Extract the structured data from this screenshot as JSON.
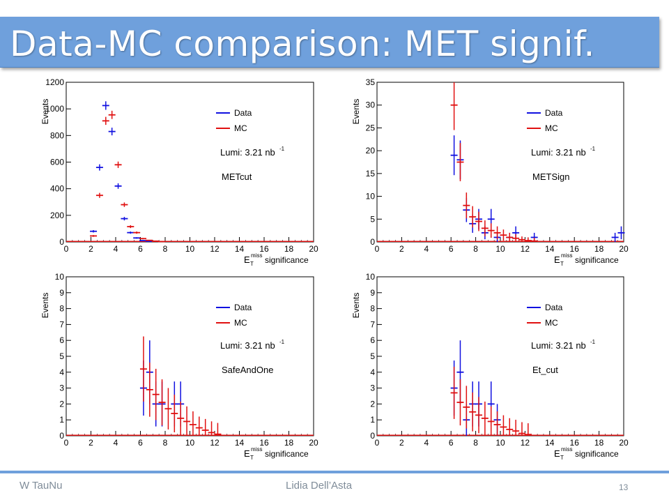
{
  "slide": {
    "title": "Data-MC comparison: MET signif.",
    "footer_left": "W TauNu",
    "footer_center": "Lidia Dell’Asta",
    "page_number": "13"
  },
  "colors": {
    "title_bar": "#6fa0dc",
    "data": "#1010e0",
    "mc": "#e01010",
    "footer_line": "#6fa0dc"
  },
  "chart_data": [
    {
      "type": "scatter",
      "name": "METcut",
      "ylabel": "Events",
      "xlabel": "significance",
      "ylim": [
        0,
        1200
      ],
      "yticks": [
        0,
        200,
        400,
        600,
        800,
        1000,
        1200
      ],
      "xlim": [
        0,
        20
      ],
      "xticks": [
        0,
        2,
        4,
        6,
        8,
        10,
        12,
        14,
        16,
        18,
        20
      ],
      "lumi": "Lumi: 3.21 nb",
      "lumi_exp": "-1",
      "selection": "METcut",
      "legend": [
        "Data",
        "MC"
      ],
      "series": [
        {
          "name": "Data",
          "points": [
            [
              2.2,
              80
            ],
            [
              2.7,
              560
            ],
            [
              3.2,
              1025
            ],
            [
              3.7,
              830
            ],
            [
              4.2,
              420
            ],
            [
              4.7,
              175
            ],
            [
              5.2,
              70
            ],
            [
              5.7,
              30
            ],
            [
              6.2,
              10
            ],
            [
              6.7,
              5
            ]
          ]
        },
        {
          "name": "MC",
          "points": [
            [
              2.2,
              45
            ],
            [
              2.7,
              350
            ],
            [
              3.2,
              910
            ],
            [
              3.7,
              955
            ],
            [
              4.2,
              580
            ],
            [
              4.7,
              280
            ],
            [
              5.2,
              115
            ],
            [
              5.7,
              70
            ],
            [
              6.2,
              25
            ],
            [
              6.7,
              12
            ],
            [
              7.2,
              6
            ],
            [
              7.7,
              3
            ]
          ]
        }
      ]
    },
    {
      "type": "scatter",
      "name": "METSign",
      "ylabel": "Events",
      "xlabel": "significance",
      "ylim": [
        0,
        35
      ],
      "yticks": [
        0,
        5,
        10,
        15,
        20,
        25,
        30,
        35
      ],
      "xlim": [
        0,
        20
      ],
      "xticks": [
        0,
        2,
        4,
        6,
        8,
        10,
        12,
        14,
        16,
        18,
        20
      ],
      "lumi": "Lumi: 3.21 nb",
      "lumi_exp": "-1",
      "selection": "METSign",
      "legend": [
        "Data",
        "MC"
      ],
      "series": [
        {
          "name": "Data",
          "points": [
            [
              6.25,
              19
            ],
            [
              6.75,
              18
            ],
            [
              7.25,
              7
            ],
            [
              7.75,
              4
            ],
            [
              8.25,
              5
            ],
            [
              8.75,
              2
            ],
            [
              9.25,
              5
            ],
            [
              9.75,
              1
            ],
            [
              10.75,
              1
            ],
            [
              11.25,
              2
            ],
            [
              12.75,
              1
            ],
            [
              19.3,
              1
            ],
            [
              19.8,
              2
            ]
          ]
        },
        {
          "name": "MC",
          "points": [
            [
              6.25,
              30
            ],
            [
              6.75,
              17.5
            ],
            [
              7.25,
              8
            ],
            [
              7.75,
              5.5
            ],
            [
              8.25,
              4.5
            ],
            [
              8.75,
              3
            ],
            [
              9.25,
              2.5
            ],
            [
              9.75,
              2
            ],
            [
              10.25,
              1.5
            ],
            [
              10.75,
              1
            ],
            [
              11.25,
              0.8
            ],
            [
              11.75,
              0.5
            ],
            [
              12.25,
              0.3
            ],
            [
              12.75,
              0.2
            ]
          ]
        }
      ]
    },
    {
      "type": "scatter",
      "name": "SafeAndOne",
      "ylabel": "Events",
      "xlabel": "significance",
      "ylim": [
        0,
        10
      ],
      "yticks": [
        0,
        1,
        2,
        3,
        4,
        5,
        6,
        7,
        8,
        9,
        10
      ],
      "xlim": [
        0,
        20
      ],
      "xticks": [
        0,
        2,
        4,
        6,
        8,
        10,
        12,
        14,
        16,
        18,
        20
      ],
      "lumi": "Lumi: 3.21 nb",
      "lumi_exp": "-1",
      "selection": "SafeAndOne",
      "legend": [
        "Data",
        "MC"
      ],
      "series": [
        {
          "name": "Data",
          "points": [
            [
              6.25,
              3
            ],
            [
              6.75,
              4
            ],
            [
              7.25,
              2
            ],
            [
              7.75,
              2
            ],
            [
              8.75,
              2
            ],
            [
              9.25,
              2
            ]
          ]
        },
        {
          "name": "MC",
          "points": [
            [
              6.25,
              4.2
            ],
            [
              6.75,
              2.9
            ],
            [
              7.25,
              2.6
            ],
            [
              7.75,
              2.1
            ],
            [
              8.25,
              1.7
            ],
            [
              8.75,
              1.4
            ],
            [
              9.25,
              1.1
            ],
            [
              9.75,
              0.9
            ],
            [
              10.25,
              0.7
            ],
            [
              10.75,
              0.5
            ],
            [
              11.25,
              0.35
            ],
            [
              11.75,
              0.2
            ],
            [
              12.25,
              0.1
            ]
          ]
        }
      ]
    },
    {
      "type": "scatter",
      "name": "Et_cut",
      "ylabel": "Events",
      "xlabel": "significance",
      "ylim": [
        0,
        10
      ],
      "yticks": [
        0,
        1,
        2,
        3,
        4,
        5,
        6,
        7,
        8,
        9,
        10
      ],
      "xlim": [
        0,
        20
      ],
      "xticks": [
        0,
        2,
        4,
        6,
        8,
        10,
        12,
        14,
        16,
        18,
        20
      ],
      "lumi": "Lumi: 3.21 nb",
      "lumi_exp": "-1",
      "selection": "Et_cut",
      "legend": [
        "Data",
        "MC"
      ],
      "series": [
        {
          "name": "Data",
          "points": [
            [
              6.25,
              3
            ],
            [
              6.75,
              4
            ],
            [
              7.25,
              1
            ],
            [
              7.75,
              2
            ],
            [
              8.25,
              2
            ],
            [
              9.25,
              2
            ],
            [
              9.75,
              1
            ]
          ]
        },
        {
          "name": "MC",
          "points": [
            [
              6.25,
              2.7
            ],
            [
              6.75,
              2.1
            ],
            [
              7.25,
              1.8
            ],
            [
              7.75,
              1.5
            ],
            [
              8.25,
              1.3
            ],
            [
              8.75,
              1.1
            ],
            [
              9.25,
              0.9
            ],
            [
              9.75,
              0.7
            ],
            [
              10.25,
              0.55
            ],
            [
              10.75,
              0.4
            ],
            [
              11.25,
              0.3
            ],
            [
              11.75,
              0.15
            ],
            [
              12.25,
              0.08
            ]
          ]
        }
      ]
    }
  ]
}
